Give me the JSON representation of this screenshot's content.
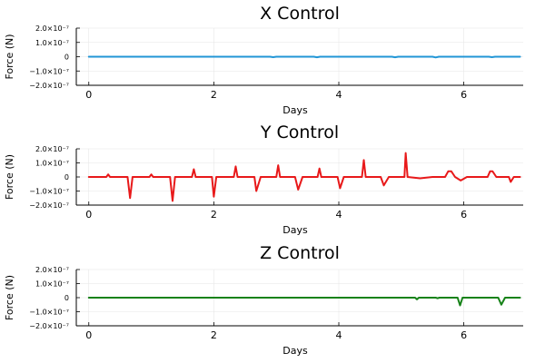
{
  "chart_data": [
    {
      "type": "line",
      "title": "X Control",
      "xlabel": "Days",
      "ylabel": "Force (N)",
      "xlim": [
        -0.2,
        6.95
      ],
      "ylim": [
        -2e-07,
        2e-07
      ],
      "xticks": [
        {
          "value": 0,
          "label": "0"
        },
        {
          "value": 2,
          "label": "2"
        },
        {
          "value": 4,
          "label": "4"
        },
        {
          "value": 6,
          "label": "6"
        }
      ],
      "yticks": [
        {
          "value": 2e-07,
          "label": "2.0×10⁻⁷"
        },
        {
          "value": 1e-07,
          "label": "1.0×10⁻⁷"
        },
        {
          "value": 0,
          "label": "0"
        },
        {
          "value": -1e-07,
          "label": "−1.0×10⁻⁷"
        },
        {
          "value": -2e-07,
          "label": "−2.0×10⁻⁷"
        }
      ],
      "grid": true,
      "series": [
        {
          "color": "#2196d6",
          "x": [
            0,
            0.5,
            1,
            1.5,
            2,
            2.5,
            2.9,
            2.95,
            3,
            3.5,
            3.6,
            3.65,
            3.7,
            4,
            4.5,
            4.85,
            4.9,
            4.95,
            5,
            5.5,
            5.55,
            5.6,
            6,
            6.4,
            6.45,
            6.5,
            6.9
          ],
          "y": [
            0,
            0,
            0,
            0,
            0,
            0,
            0,
            -3e-09,
            0,
            0,
            0,
            -4e-09,
            0,
            0,
            0,
            0,
            -4e-09,
            0,
            0,
            0,
            -5e-09,
            0,
            0,
            0,
            -3e-09,
            0,
            0
          ]
        }
      ]
    },
    {
      "type": "line",
      "title": "Y Control",
      "xlabel": "Days",
      "ylabel": "Force (N)",
      "xlim": [
        -0.2,
        6.95
      ],
      "ylim": [
        -2e-07,
        2e-07
      ],
      "xticks": [
        {
          "value": 0,
          "label": "0"
        },
        {
          "value": 2,
          "label": "2"
        },
        {
          "value": 4,
          "label": "4"
        },
        {
          "value": 6,
          "label": "6"
        }
      ],
      "yticks": [
        {
          "value": 2e-07,
          "label": "2.0×10⁻⁷"
        },
        {
          "value": 1e-07,
          "label": "1.0×10⁻⁷"
        },
        {
          "value": 0,
          "label": "0"
        },
        {
          "value": -1e-07,
          "label": "−1.0×10⁻⁷"
        },
        {
          "value": -2e-07,
          "label": "−2.0×10⁻⁷"
        }
      ],
      "grid": true,
      "series": [
        {
          "color": "#e8191a",
          "x": [
            0,
            0.28,
            0.31,
            0.34,
            0.62,
            0.66,
            0.7,
            0.97,
            1.0,
            1.03,
            1.3,
            1.34,
            1.38,
            1.65,
            1.68,
            1.71,
            1.97,
            2.0,
            2.04,
            2.32,
            2.35,
            2.38,
            2.65,
            2.68,
            2.75,
            3.0,
            3.03,
            3.06,
            3.3,
            3.35,
            3.42,
            3.66,
            3.69,
            3.72,
            3.98,
            4.02,
            4.08,
            4.37,
            4.4,
            4.43,
            4.67,
            4.72,
            4.8,
            5.05,
            5.07,
            5.1,
            5.3,
            5.5,
            5.7,
            5.75,
            5.8,
            5.86,
            5.95,
            6.05,
            6.2,
            6.38,
            6.42,
            6.46,
            6.52,
            6.72,
            6.75,
            6.8,
            6.9
          ],
          "y": [
            0,
            0,
            1.8e-08,
            0,
            0,
            -1.5e-07,
            0,
            0,
            1.8e-08,
            0,
            0,
            -1.7e-07,
            0,
            0,
            5.5e-08,
            0,
            0,
            -1.4e-07,
            0,
            0,
            7.5e-08,
            0,
            0,
            -1e-07,
            0,
            0,
            8.3e-08,
            0,
            0,
            -9e-08,
            0,
            0,
            6e-08,
            0,
            0,
            -8e-08,
            0,
            0,
            1.2e-07,
            0,
            0,
            -6e-08,
            0,
            0,
            1.7e-07,
            0,
            -1e-08,
            0,
            0,
            4e-08,
            4e-08,
            0,
            -2.5e-08,
            0,
            0,
            0,
            4e-08,
            4e-08,
            0,
            0,
            -3.5e-08,
            0,
            0
          ]
        }
      ]
    },
    {
      "type": "line",
      "title": "Z Control",
      "xlabel": "Days",
      "ylabel": "Force (N)",
      "xlim": [
        -0.2,
        6.95
      ],
      "ylim": [
        -2e-07,
        2e-07
      ],
      "xticks": [
        {
          "value": 0,
          "label": "0"
        },
        {
          "value": 2,
          "label": "2"
        },
        {
          "value": 4,
          "label": "4"
        },
        {
          "value": 6,
          "label": "6"
        }
      ],
      "yticks": [
        {
          "value": 2e-07,
          "label": "2.0×10⁻⁷"
        },
        {
          "value": 1e-07,
          "label": "1.0×10⁻⁷"
        },
        {
          "value": 0,
          "label": "0"
        },
        {
          "value": -1e-07,
          "label": "−1.0×10⁻⁷"
        },
        {
          "value": -2e-07,
          "label": "−2.0×10⁻⁷"
        }
      ],
      "grid": true,
      "series": [
        {
          "color": "#168218",
          "x": [
            0,
            1,
            2,
            3,
            4,
            5,
            5.22,
            5.25,
            5.28,
            5.55,
            5.58,
            5.61,
            5.9,
            5.94,
            5.98,
            6.3,
            6.55,
            6.6,
            6.66,
            6.9
          ],
          "y": [
            0,
            0,
            0,
            0,
            0,
            0,
            0,
            -1.2e-08,
            0,
            0,
            -4e-09,
            0,
            0,
            -5.5e-08,
            0,
            0,
            0,
            -5e-08,
            0,
            0
          ]
        }
      ]
    }
  ]
}
